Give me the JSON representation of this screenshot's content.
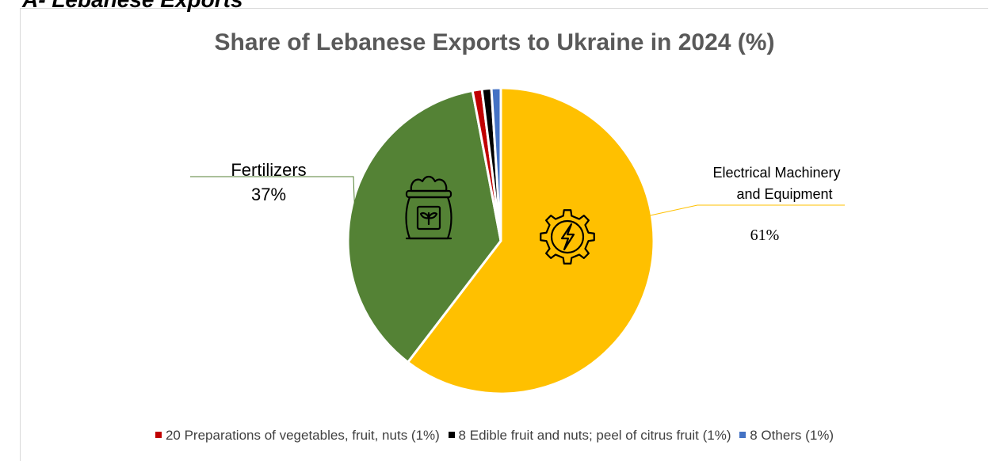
{
  "page": {
    "heading": "A- Lebanese Exports"
  },
  "chart_data": {
    "type": "pie",
    "title": "Share of Lebanese Exports to Ukraine in 2024 (%)",
    "slices": [
      {
        "label": "Electrical Machinery and Equipment",
        "label_lines": [
          "Electrical Machinery",
          "and Equipment"
        ],
        "value": 61,
        "value_label": "61%",
        "color": "#ffc000",
        "icon": "lightning-gear-icon"
      },
      {
        "label": "Fertilizers",
        "label_lines": [
          "Fertilizers"
        ],
        "value": 37,
        "value_label": "37%",
        "color": "#548235",
        "icon": "fertilizer-bag-icon"
      },
      {
        "label": "20 Preparations of vegetables, fruit, nuts",
        "value": 1,
        "color": "#c00000"
      },
      {
        "label": "8 Edible fruit and nuts; peel of citrus fruit",
        "value": 1,
        "color": "#000000"
      },
      {
        "label": "8 Others",
        "value": 1,
        "color": "#4472c4"
      }
    ],
    "legend": {
      "placement": "bottom",
      "entries": [
        {
          "text": "20 Preparations of vegetables, fruit, nuts (1%)",
          "color": "#c00000"
        },
        {
          "text": "8 Edible fruit and nuts; peel of citrus fruit (1%)",
          "color": "#000000"
        },
        {
          "text": "8 Others (1%)",
          "color": "#4472c4"
        }
      ]
    }
  }
}
